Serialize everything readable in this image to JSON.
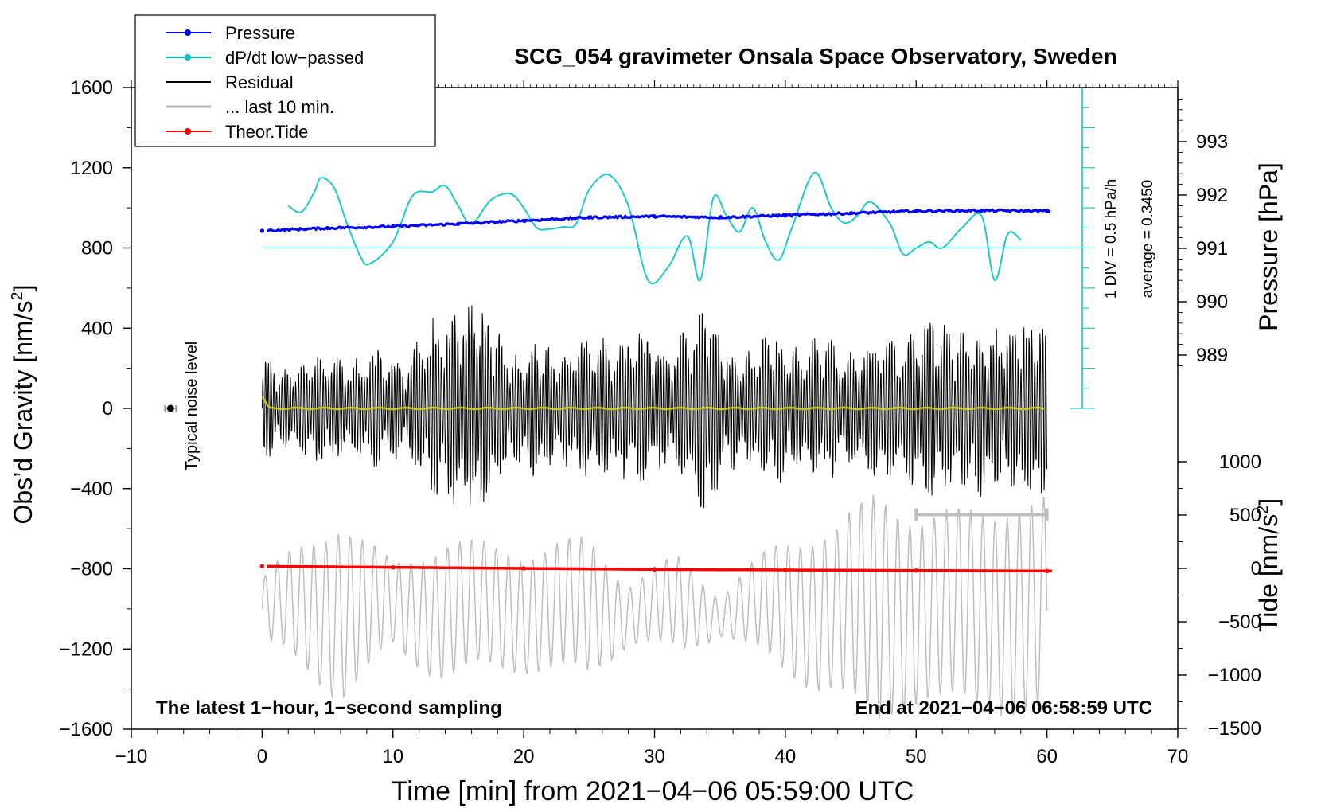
{
  "chart_data": {
    "type": "line",
    "title": "SCG_054 gravimeter Onsala Space Observatory, Sweden",
    "xlabel": "Time [min] from 2021−04−06 05:59:00 UTC",
    "ylabel_left_main": "Obs’d Gravity [nm/s",
    "ylabel_left_sup": "2",
    "ylabel_left_end": "]",
    "ylabel_right_pressure": "Pressure [hPa]",
    "ylabel_right_tide_main": "Tide [nm/s",
    "ylabel_right_tide_sup": "2",
    "ylabel_right_tide_end": "]",
    "xlim": [
      -10,
      70
    ],
    "ylim": [
      -1600,
      1600
    ],
    "pressure_lim": [
      988,
      994
    ],
    "tide_lim": [
      -1500,
      1500
    ],
    "x_ticks": [
      -10,
      0,
      10,
      20,
      30,
      40,
      50,
      60,
      70
    ],
    "x_tick_labels": [
      "−10",
      "0",
      "10",
      "20",
      "30",
      "40",
      "50",
      "60",
      "70"
    ],
    "y_ticks": [
      1600,
      1200,
      800,
      400,
      0,
      -400,
      -800,
      -1200,
      -1600
    ],
    "y_tick_labels": [
      "1600",
      "1200",
      "800",
      "400",
      "0",
      "−400",
      "−800",
      "−1200",
      "−1600"
    ],
    "pressure_ticks": [
      993,
      992,
      991,
      990,
      989
    ],
    "pressure_tick_labels": [
      "993",
      "992",
      "991",
      "990",
      "989"
    ],
    "tide_ticks": [
      1000,
      500,
      0,
      -500,
      -1000,
      -1500
    ],
    "tide_tick_labels": [
      "1000",
      "500",
      "0",
      "−500",
      "−1000",
      "−1500"
    ],
    "legend": [
      {
        "label": "Pressure",
        "color": "#0000ff",
        "marker": true
      },
      {
        "label": "dP/dt low−passed",
        "color": "#00c0c0",
        "marker": true
      },
      {
        "label": "Residual",
        "color": "#000000",
        "marker": false
      },
      {
        "label": "... last 10 min.",
        "color": "#b4b4b4",
        "marker": false
      },
      {
        "label": "Theor.Tide",
        "color": "#ff0000",
        "marker": true
      }
    ],
    "colors": {
      "pressure": "#0000ff",
      "dpdt": "#20c8c8",
      "residual": "#000000",
      "last10": "#bebebe",
      "tide": "#ff0000",
      "smoothed": "#c8c81e"
    },
    "annotations": {
      "noise": "Typical noise level",
      "scale_div": "1 DIV = 0.5 hPa/h",
      "average": "average = 0.3450",
      "bottom_left": "The latest 1−hour, 1−second sampling",
      "bottom_right": "End at 2021−04−06 06:58:59 UTC"
    },
    "noise_level": {
      "x": -7,
      "y": 0,
      "err": 20
    },
    "last10_bar": {
      "x_start": 50,
      "x_end": 60,
      "y": -530
    },
    "series": [
      {
        "name": "Pressure",
        "axis": "pressure",
        "x": [
          0,
          5,
          10,
          15,
          20,
          25,
          30,
          35,
          40,
          45,
          50,
          55,
          60
        ],
        "values": [
          991.33,
          991.38,
          991.41,
          991.46,
          991.52,
          991.58,
          991.6,
          991.58,
          991.62,
          991.66,
          991.7,
          991.71,
          991.7
        ]
      },
      {
        "name": "dP/dt low-passed",
        "axis": "gravity",
        "x": [
          2,
          3,
          4,
          4.5,
          5.5,
          6.5,
          7.5,
          8.2,
          10,
          11.5,
          13,
          14,
          15,
          16,
          17.5,
          19,
          20,
          21,
          22,
          23,
          24,
          25,
          26.5,
          28,
          29.5,
          31,
          32.5,
          33.5,
          34.5,
          35.5,
          36.5,
          37.5,
          38.5,
          39.5,
          40.5,
          42.2,
          43.5,
          44.5,
          45.5,
          46.5,
          48,
          49,
          50,
          51,
          52,
          53.5,
          55,
          56,
          57,
          58
        ],
        "values": [
          1010,
          980,
          1080,
          1150,
          1100,
          920,
          760,
          720,
          830,
          1060,
          1080,
          1110,
          1010,
          920,
          1040,
          1070,
          1000,
          900,
          895,
          905,
          920,
          1090,
          1165,
          1010,
          640,
          700,
          860,
          640,
          1050,
          960,
          880,
          1000,
          830,
          740,
          900,
          1175,
          1000,
          925,
          960,
          1030,
          920,
          770,
          800,
          830,
          800,
          900,
          960,
          640,
          870,
          840
        ]
      },
      {
        "name": "Residual",
        "axis": "gravity",
        "x_range": [
          0,
          60
        ],
        "amplitude_range": [
          -650,
          640
        ]
      },
      {
        "name": "... last 10 min.",
        "axis": "gravity",
        "x_range": [
          0,
          60
        ],
        "offset": -1000,
        "amplitude_range": [
          -1600,
          -400
        ]
      },
      {
        "name": "Theor.Tide",
        "axis": "tide",
        "x": [
          0,
          10,
          20,
          30,
          40,
          50,
          60
        ],
        "values": [
          20,
          10,
          0,
          -10,
          -15,
          -20,
          -25
        ]
      }
    ]
  }
}
